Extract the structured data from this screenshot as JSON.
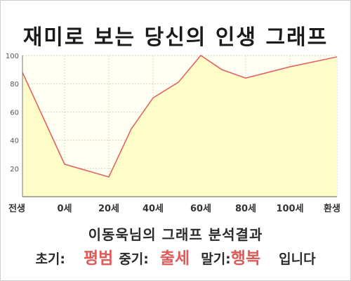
{
  "page": {
    "title": "재미로 보는 당신의 인생 그래프",
    "analysis_title": "이동욱님의 그래프 분석결과",
    "result": {
      "early_label": "초기:",
      "early_value": "평범",
      "mid_label": "중기:",
      "mid_value": "출세",
      "late_label": "말기:",
      "late_value": "행복",
      "ending": "입니다"
    }
  },
  "colors": {
    "line": "#e06565",
    "fill": "#fffdc8",
    "plot_bg": "#fffff2",
    "accent_text": "#e05a5a"
  },
  "chart_data": {
    "type": "area",
    "title": "재미로 보는 당신의 인생 그래프",
    "x_categories": [
      "전생",
      "0세",
      "20세",
      "40세",
      "60세",
      "80세",
      "100세",
      "환생"
    ],
    "x": [
      "전생",
      "0세",
      "20세",
      "30세",
      "40세",
      "50세",
      "60세",
      "70세",
      "80세",
      "100세",
      "환생"
    ],
    "values": [
      88,
      23,
      14,
      48,
      70,
      81,
      100,
      90,
      84,
      92,
      99
    ],
    "y_ticks": [
      20,
      40,
      60,
      80,
      100
    ],
    "ylim": [
      0,
      100
    ],
    "grid": true
  }
}
